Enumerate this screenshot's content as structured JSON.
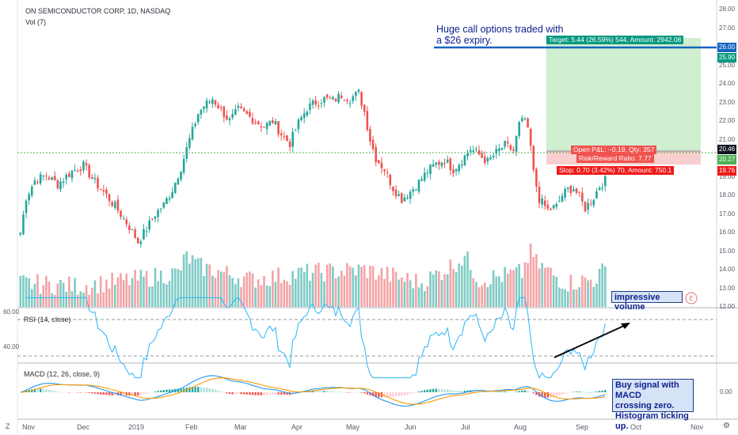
{
  "header": {
    "symbol_title": "ON SEMICONDUCTOR CORP, 1D, NASDAQ",
    "volume_title": "Vol (7)"
  },
  "annotations": {
    "call_options_line1": "Huge call options traded with",
    "call_options_line2": "a $26 expiry.",
    "volume_note": "impressive volume",
    "macd_note_line1": "Buy signal with MACD",
    "macd_note_line2": "crossing zero.",
    "macd_note_line3": "Histogram ticking up.",
    "event_marker": "E"
  },
  "position_tool": {
    "target_label": "Target: 5.44 (26.59%) 544, Amount: 2942.08",
    "open_pnl_label": "Open P&L: −0.19, Qty: 357",
    "risk_reward_label": "Risk/Reward Ratio: 7.77",
    "stop_label": "Stop: 0.70 (3.42%) 70, Amount: 750.1",
    "entry": 20.46,
    "target": 25.9,
    "stop": 19.76
  },
  "price_tags": {
    "level_26": "26.00",
    "target": "25.90",
    "last": "20.46",
    "entry_dim": "20.27",
    "stop": "19.76"
  },
  "price_axis": {
    "ticks": [
      "28.00",
      "27.00",
      "26.00",
      "25.00",
      "24.00",
      "23.00",
      "22.00",
      "21.00",
      "20.00",
      "19.00",
      "18.00",
      "17.00",
      "16.00",
      "15.00",
      "14.00",
      "13.00",
      "12.00"
    ]
  },
  "rsi": {
    "title": "RSI (14, close)",
    "upper_label": "60.00",
    "lower_label": "40.00"
  },
  "macd": {
    "title": "MACD (12, 26, close, 9)",
    "zero_label": "0.00"
  },
  "time_axis": {
    "labels": [
      "Nov",
      "Dec",
      "2019",
      "Feb",
      "Mar",
      "Apr",
      "May",
      "Jun",
      "Jul",
      "Aug",
      "Sep",
      "Oct",
      "Nov"
    ],
    "zoom_label": "Z"
  },
  "colors": {
    "up": "#26a69a",
    "down": "#ef5350",
    "vol_up": "#7fcbc4",
    "vol_down": "#f4a3a6",
    "target_zone": "#c8ebc8",
    "stop_zone": "#f8c9c9",
    "level_line": "#1565c0",
    "macd_line": "#2196f3",
    "signal_line": "#ff9800",
    "rsi_line": "#29b6f6",
    "entry_line": "#4caf50"
  },
  "chart_data": {
    "type": "candlestick",
    "title": "ON SEMICONDUCTOR CORP, 1D, NASDAQ",
    "ylim": [
      12,
      28.5
    ],
    "horizontal_levels": [
      26.0,
      20.46
    ],
    "price_anchor_path": [
      [
        0,
        16.0
      ],
      [
        2,
        17.9
      ],
      [
        5,
        18.8
      ],
      [
        9,
        19.1
      ],
      [
        13,
        18.6
      ],
      [
        18,
        19.3
      ],
      [
        22,
        19.6
      ],
      [
        26,
        18.7
      ],
      [
        30,
        18.0
      ],
      [
        34,
        17.2
      ],
      [
        38,
        16.3
      ],
      [
        41,
        15.5
      ],
      [
        44,
        16.2
      ],
      [
        47,
        17.0
      ],
      [
        50,
        17.5
      ],
      [
        53,
        18.3
      ],
      [
        56,
        19.5
      ],
      [
        59,
        21.0
      ],
      [
        62,
        22.4
      ],
      [
        64,
        22.8
      ],
      [
        67,
        23.2
      ],
      [
        70,
        22.6
      ],
      [
        73,
        22.0
      ],
      [
        76,
        22.6
      ],
      [
        79,
        22.3
      ],
      [
        82,
        22.0
      ],
      [
        85,
        21.7
      ],
      [
        88,
        22.0
      ],
      [
        91,
        21.3
      ],
      [
        94,
        20.8
      ],
      [
        97,
        21.9
      ],
      [
        100,
        22.7
      ],
      [
        103,
        23.0
      ],
      [
        106,
        23.2
      ],
      [
        109,
        23.1
      ],
      [
        112,
        23.4
      ],
      [
        115,
        23.2
      ],
      [
        118,
        23.5
      ],
      [
        120,
        22.5
      ],
      [
        122,
        21.0
      ],
      [
        124,
        20.0
      ],
      [
        127,
        19.4
      ],
      [
        130,
        18.4
      ],
      [
        133,
        17.8
      ],
      [
        136,
        18.2
      ],
      [
        139,
        18.7
      ],
      [
        142,
        19.3
      ],
      [
        145,
        19.7
      ],
      [
        148,
        19.9
      ],
      [
        151,
        19.4
      ],
      [
        154,
        19.9
      ],
      [
        157,
        20.5
      ],
      [
        160,
        20.2
      ],
      [
        163,
        19.8
      ],
      [
        166,
        20.3
      ],
      [
        169,
        20.7
      ],
      [
        172,
        20.4
      ],
      [
        174,
        21.8
      ],
      [
        176,
        22.1
      ],
      [
        177,
        21.4
      ],
      [
        178,
        20.6
      ],
      [
        179,
        19.2
      ],
      [
        181,
        17.8
      ],
      [
        184,
        17.2
      ],
      [
        187,
        17.4
      ],
      [
        189,
        18.0
      ],
      [
        191,
        18.3
      ],
      [
        193,
        18.4
      ],
      [
        195,
        17.9
      ],
      [
        197,
        17.3
      ],
      [
        200,
        17.9
      ],
      [
        202,
        18.5
      ],
      [
        204,
        18.8
      ]
    ],
    "volume_anchor_path": [
      [
        0,
        6
      ],
      [
        20,
        5
      ],
      [
        40,
        7
      ],
      [
        55,
        9
      ],
      [
        58,
        14
      ],
      [
        62,
        11
      ],
      [
        80,
        7
      ],
      [
        100,
        9
      ],
      [
        120,
        10
      ],
      [
        140,
        6
      ],
      [
        150,
        11
      ],
      [
        155,
        14
      ],
      [
        160,
        7
      ],
      [
        175,
        9
      ],
      [
        178,
        16
      ],
      [
        180,
        12
      ],
      [
        190,
        6
      ],
      [
        200,
        7
      ],
      [
        204,
        10
      ]
    ],
    "rsi_levels": [
      60,
      40
    ],
    "macd_zero": 0
  }
}
